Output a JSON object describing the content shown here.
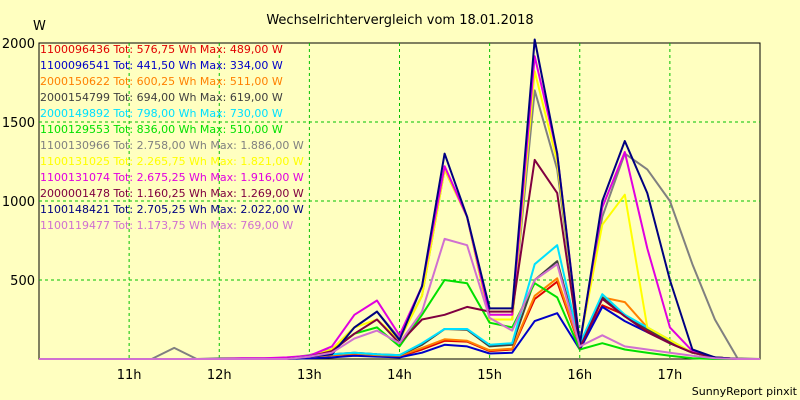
{
  "chart_data": {
    "type": "line",
    "title": "Wechselrichtervergleich vom 18.01.2018",
    "y_unit": "W",
    "footer": "SunnyReport pinxit",
    "ylim": [
      0,
      2000
    ],
    "y_ticks": [
      500,
      1000,
      1500,
      2000
    ],
    "x_ticks": [
      "11h",
      "12h",
      "13h",
      "14h",
      "15h",
      "16h",
      "17h"
    ],
    "x": [
      "10:00",
      "10:15",
      "10:30",
      "10:45",
      "11:00",
      "11:15",
      "11:30",
      "11:45",
      "12:00",
      "12:15",
      "12:30",
      "12:45",
      "13:00",
      "13:15",
      "13:30",
      "13:45",
      "14:00",
      "14:15",
      "14:30",
      "14:45",
      "15:00",
      "15:15",
      "15:30",
      "15:45",
      "16:00",
      "16:15",
      "16:30",
      "16:45",
      "17:00",
      "17:15",
      "17:30",
      "17:45",
      "18:00"
    ],
    "grid": true,
    "legend": "top-left",
    "series": [
      {
        "name": "1100096436 Tot: 576,75 Wh Max: 489,00 W",
        "color": "#e00000",
        "values": [
          0,
          0,
          0,
          0,
          0,
          0,
          0,
          0,
          0,
          0,
          0,
          0,
          15,
          25,
          30,
          20,
          15,
          60,
          115,
          110,
          50,
          60,
          380,
          489,
          80,
          340,
          280,
          180,
          100,
          40,
          10,
          0,
          0
        ]
      },
      {
        "name": "1100096541 Tot: 441,50 Wh Max: 334,00 W",
        "color": "#0000c8",
        "values": [
          0,
          0,
          0,
          0,
          0,
          0,
          0,
          0,
          0,
          0,
          0,
          0,
          5,
          10,
          20,
          15,
          10,
          40,
          90,
          80,
          35,
          40,
          240,
          290,
          60,
          330,
          240,
          170,
          100,
          40,
          10,
          0,
          0
        ]
      },
      {
        "name": "2000150622 Tot: 600,25 Wh Max: 511,00 W",
        "color": "#ff8000",
        "values": [
          0,
          0,
          0,
          0,
          0,
          0,
          0,
          0,
          0,
          0,
          0,
          0,
          15,
          25,
          35,
          25,
          20,
          70,
          125,
          115,
          55,
          65,
          400,
          511,
          85,
          390,
          360,
          200,
          110,
          40,
          10,
          0,
          0
        ]
      },
      {
        "name": "2000154799 Tot: 694,00 Wh Max: 619,00 W",
        "color": "#404040",
        "values": [
          0,
          0,
          0,
          0,
          0,
          0,
          0,
          0,
          0,
          0,
          0,
          0,
          15,
          30,
          40,
          30,
          25,
          90,
          190,
          185,
          80,
          90,
          500,
          619,
          95,
          390,
          270,
          190,
          110,
          40,
          10,
          0,
          0
        ]
      },
      {
        "name": "2000149892 Tot: 798,00 Wh Max: 730,00 W",
        "color": "#00e0ff",
        "values": [
          0,
          0,
          0,
          0,
          0,
          0,
          0,
          0,
          0,
          0,
          0,
          0,
          15,
          30,
          40,
          30,
          25,
          100,
          190,
          190,
          90,
          100,
          600,
          720,
          95,
          410,
          280,
          200,
          120,
          40,
          10,
          0,
          0
        ]
      },
      {
        "name": "1100129553 Tot: 836,00 Wh Max: 510,00 W",
        "color": "#00e000",
        "values": [
          0,
          0,
          0,
          0,
          0,
          0,
          0,
          0,
          0,
          0,
          0,
          0,
          20,
          60,
          160,
          200,
          80,
          280,
          500,
          480,
          230,
          200,
          480,
          390,
          60,
          100,
          60,
          40,
          20,
          5,
          0,
          0,
          0
        ]
      },
      {
        "name": "1100130966 Tot: 2.758,00 Wh Max: 1.886,00 W",
        "color": "#808080",
        "values": [
          0,
          0,
          0,
          0,
          0,
          0,
          70,
          0,
          5,
          5,
          5,
          5,
          25,
          60,
          200,
          300,
          130,
          400,
          1200,
          900,
          250,
          250,
          1700,
          1200,
          100,
          900,
          1300,
          1200,
          1000,
          600,
          250,
          5,
          0
        ]
      },
      {
        "name": "1100131025 Tot: 2.265,75 Wh Max: 1.821,00 W",
        "color": "#ffff00",
        "values": [
          0,
          0,
          0,
          0,
          0,
          0,
          0,
          0,
          0,
          0,
          0,
          5,
          15,
          60,
          200,
          250,
          120,
          400,
          1200,
          900,
          250,
          250,
          1821,
          1250,
          100,
          850,
          1040,
          200,
          120,
          40,
          10,
          0,
          0
        ]
      },
      {
        "name": "1100131074 Tot: 2.675,25 Wh Max: 1.916,00 W",
        "color": "#e000e0",
        "values": [
          0,
          0,
          0,
          0,
          0,
          0,
          0,
          0,
          0,
          5,
          5,
          10,
          20,
          80,
          280,
          370,
          150,
          460,
          1220,
          900,
          280,
          280,
          1916,
          1300,
          100,
          960,
          1310,
          700,
          200,
          50,
          10,
          0,
          0
        ]
      },
      {
        "name": "2000001478 Tot: 1.160,25 Wh Max: 1.269,00 W",
        "color": "#800040",
        "values": [
          0,
          0,
          0,
          0,
          0,
          0,
          0,
          0,
          0,
          0,
          0,
          0,
          15,
          50,
          160,
          250,
          100,
          250,
          280,
          330,
          300,
          300,
          1260,
          1050,
          70,
          380,
          270,
          170,
          100,
          40,
          10,
          0,
          0
        ]
      },
      {
        "name": "1100148421 Tot: 2.705,25 Wh Max: 2.022,00 W",
        "color": "#000080",
        "values": [
          0,
          0,
          0,
          0,
          0,
          0,
          0,
          0,
          0,
          0,
          0,
          0,
          15,
          30,
          200,
          300,
          120,
          460,
          1300,
          900,
          320,
          320,
          2022,
          1300,
          90,
          1000,
          1380,
          1050,
          500,
          60,
          10,
          0,
          0
        ]
      },
      {
        "name": "1100119477 Tot: 1.173,75 Wh Max: 769,00 W",
        "color": "#d070d0",
        "values": [
          0,
          0,
          0,
          0,
          0,
          0,
          0,
          0,
          0,
          0,
          0,
          0,
          15,
          40,
          130,
          180,
          100,
          300,
          760,
          720,
          260,
          180,
          500,
          600,
          80,
          150,
          80,
          60,
          40,
          20,
          5,
          0,
          0
        ]
      }
    ]
  }
}
